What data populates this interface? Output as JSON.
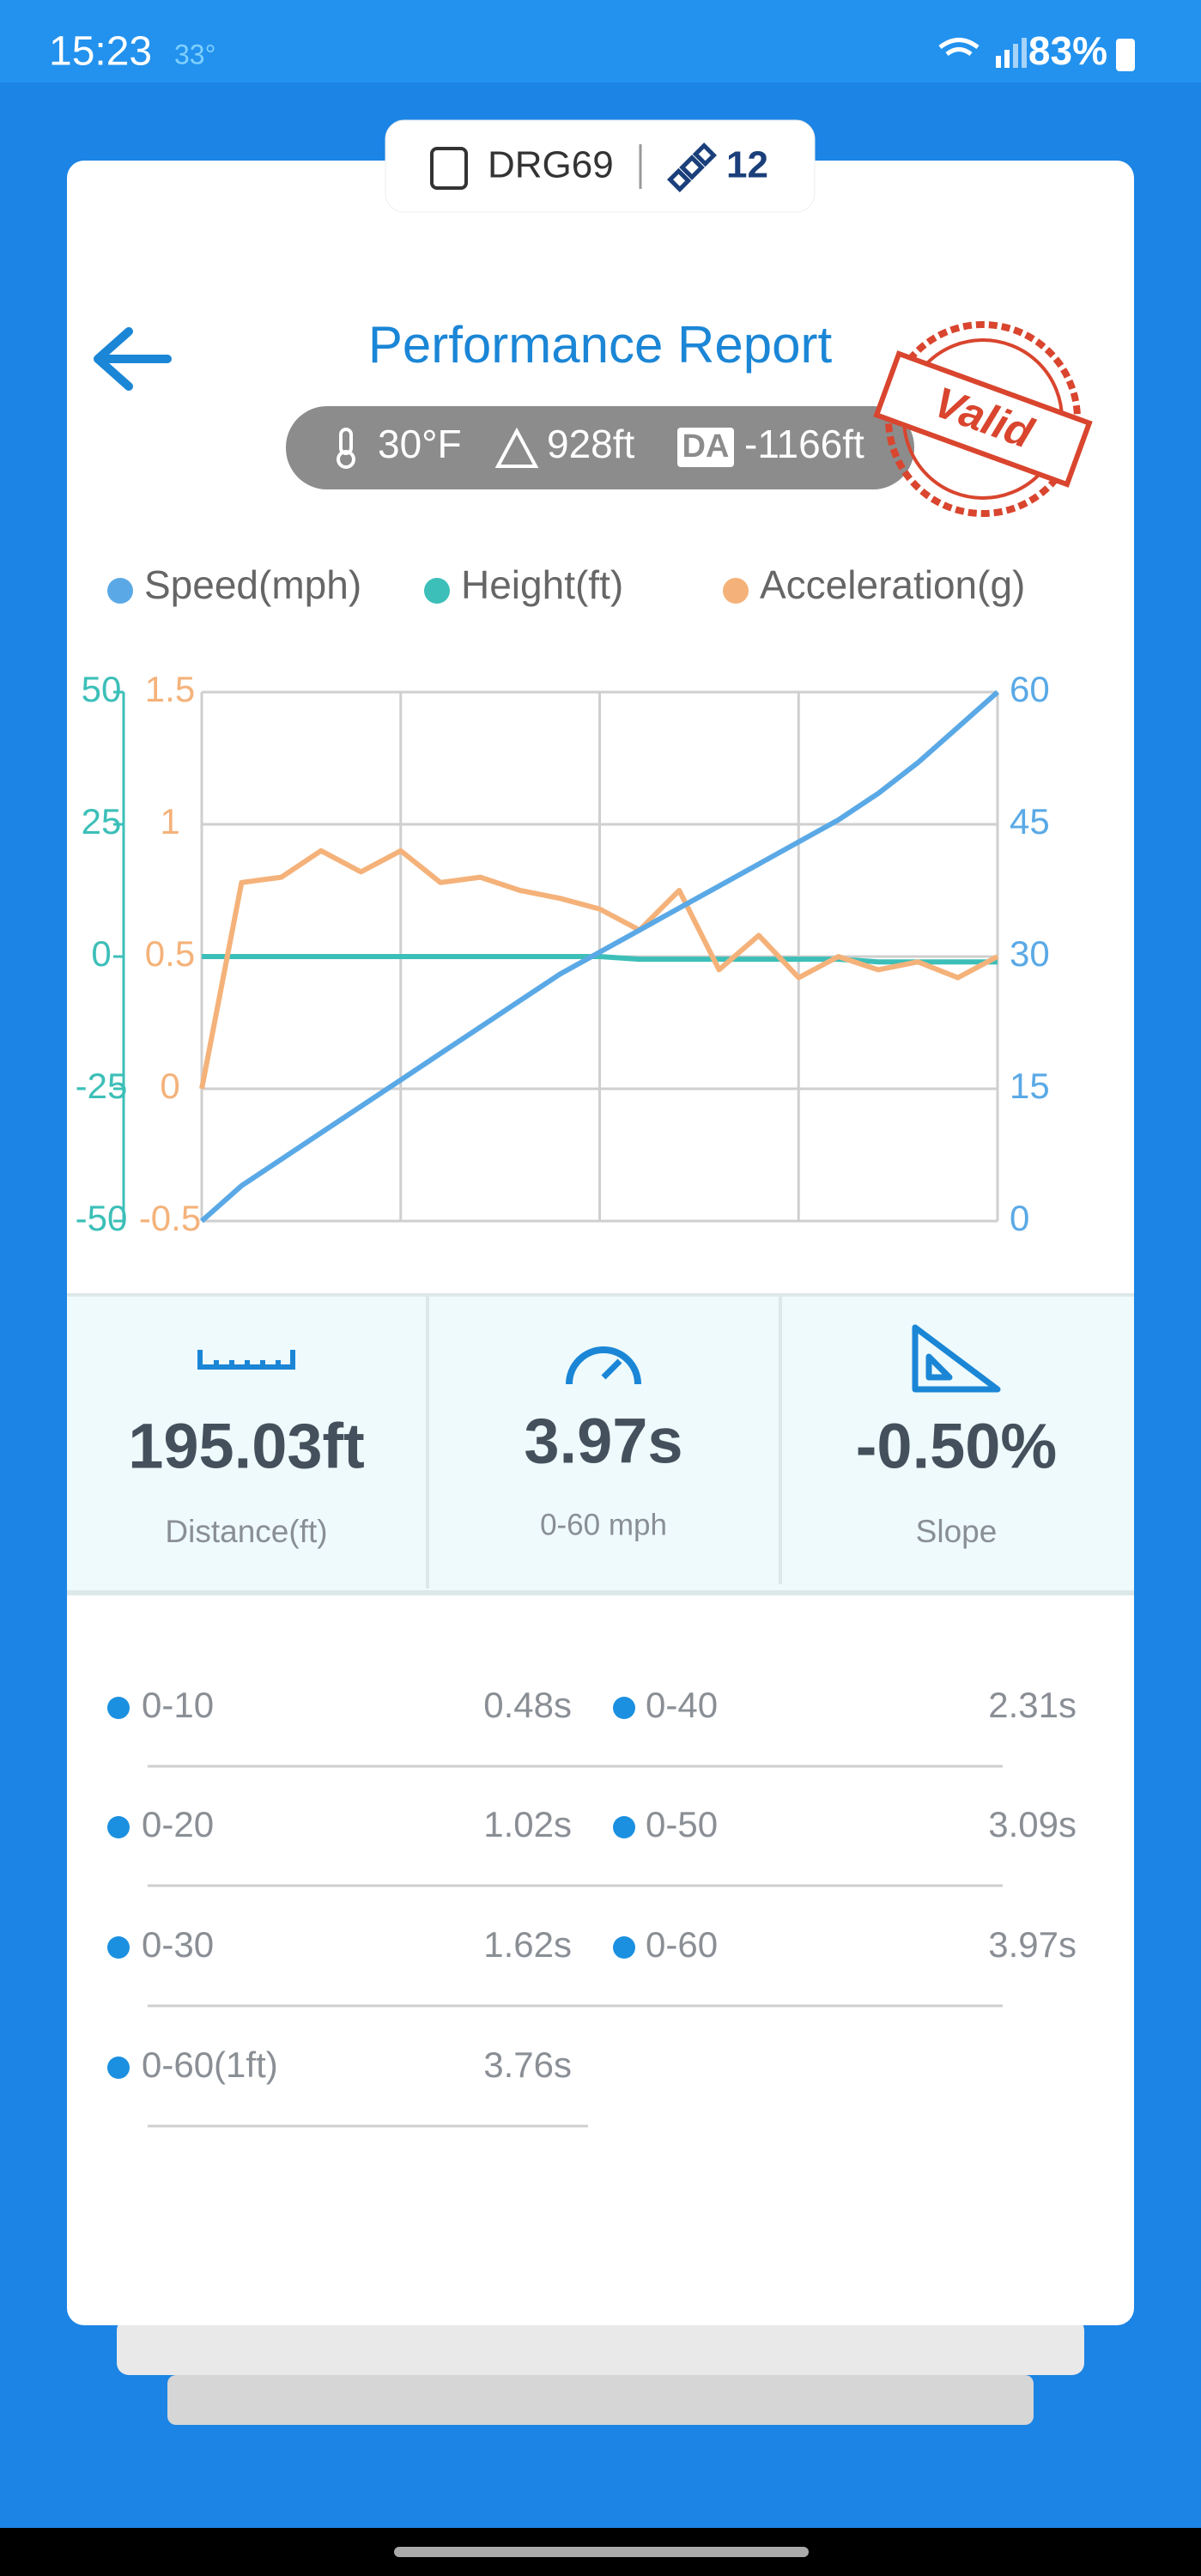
{
  "status_bar": {
    "time": "15:23",
    "temperature": "33°",
    "battery": "83%"
  },
  "device": {
    "name": "DRG69",
    "satellites": "12"
  },
  "header": {
    "title": "Performance Report",
    "stamp": "Valid"
  },
  "conditions": {
    "temperature": "30°F",
    "altitude": "928ft",
    "da_label": "DA",
    "density_altitude": "-1166ft"
  },
  "chart_data": {
    "type": "line",
    "series": [
      {
        "name": "Speed(mph)",
        "color": "#5aa9e6",
        "axis": "y2",
        "values": [
          0,
          4,
          7,
          10,
          13,
          16,
          19,
          22,
          25,
          28,
          30.5,
          33,
          35.5,
          38,
          40.5,
          43,
          45.5,
          48.5,
          52,
          56,
          60
        ]
      },
      {
        "name": "Height(ft)",
        "color": "#3cbfb8",
        "axis": "y",
        "values": [
          0,
          0,
          0,
          0,
          0,
          0,
          0,
          0,
          0,
          0,
          0,
          -0.5,
          -0.5,
          -0.5,
          -0.5,
          -0.5,
          -0.5,
          -1,
          -1,
          -1,
          -1
        ]
      },
      {
        "name": "Acceleration(g)",
        "color": "#f4b27a",
        "axis": "y3",
        "values": [
          0,
          0.78,
          0.8,
          0.9,
          0.82,
          0.9,
          0.78,
          0.8,
          0.75,
          0.72,
          0.68,
          0.6,
          0.75,
          0.45,
          0.58,
          0.42,
          0.5,
          0.45,
          0.48,
          0.42,
          0.5
        ]
      }
    ],
    "ylim": [
      -50,
      50
    ],
    "yticks": [
      -50,
      -25,
      0,
      25,
      50
    ],
    "y3lim": [
      -0.5,
      1.5
    ],
    "y3ticks": [
      -0.5,
      0,
      0.5,
      1,
      1.5
    ],
    "y2lim": [
      0,
      60
    ],
    "y2ticks": [
      0,
      15,
      30,
      45,
      60
    ],
    "grid": true
  },
  "stats": [
    {
      "value": "195.03ft",
      "label": "Distance(ft)"
    },
    {
      "value": "3.97s",
      "label": "0-60 mph"
    },
    {
      "value": "-0.50%",
      "label": "Slope"
    }
  ],
  "splits": [
    [
      {
        "label": "0-10",
        "time": "0.48s"
      },
      {
        "label": "0-40",
        "time": "2.31s"
      }
    ],
    [
      {
        "label": "0-20",
        "time": "1.02s"
      },
      {
        "label": "0-50",
        "time": "3.09s"
      }
    ],
    [
      {
        "label": "0-30",
        "time": "1.62s"
      },
      {
        "label": "0-60",
        "time": "3.97s"
      }
    ],
    [
      {
        "label": "0-60(1ft)",
        "time": "3.76s"
      }
    ]
  ]
}
